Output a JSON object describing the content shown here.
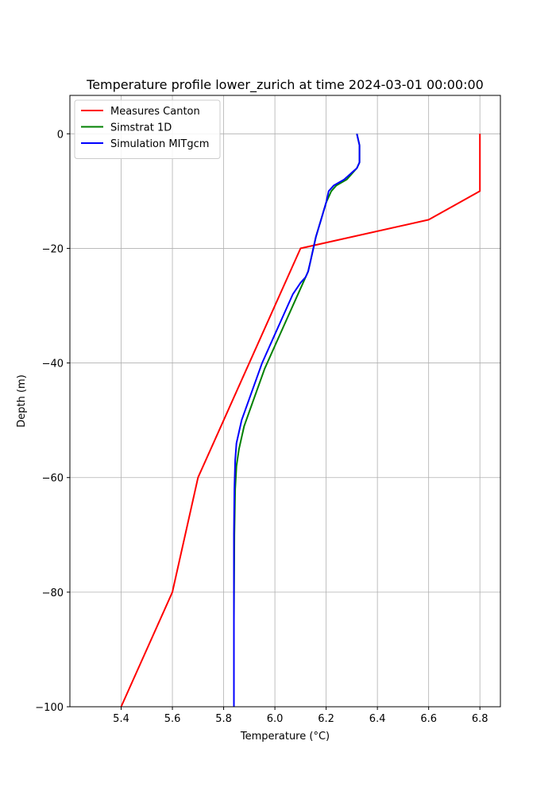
{
  "chart_data": {
    "type": "line",
    "title": "Temperature profile lower_zurich at time 2024-03-01 00:00:00",
    "xlabel": "Temperature (°C)",
    "ylabel": "Depth (m)",
    "xlim": [
      5.2,
      6.88
    ],
    "ylim": [
      -100,
      6.7
    ],
    "x_ticks": [
      5.4,
      5.6,
      5.8,
      6.0,
      6.2,
      6.4,
      6.6,
      6.8
    ],
    "y_ticks": [
      0,
      -20,
      -40,
      -60,
      -80,
      -100
    ],
    "grid": true,
    "legend_position": "top-left",
    "series": [
      {
        "name": "Measures Canton",
        "color": "#ff0000",
        "x": [
          6.8,
          6.8,
          6.6,
          6.1,
          5.7,
          5.6,
          5.4
        ],
        "y": [
          0,
          -10,
          -15,
          -20,
          -60,
          -80,
          -100
        ]
      },
      {
        "name": "Simstrat 1D",
        "color": "#008000",
        "x": [
          6.32,
          6.33,
          6.33,
          6.32,
          6.28,
          6.24,
          6.22,
          6.2,
          6.18,
          6.16,
          6.15,
          6.14,
          6.13,
          6.12,
          6.11,
          6.08,
          6.04,
          6.0,
          5.96,
          5.92,
          5.88,
          5.86,
          5.85,
          5.845,
          5.842,
          5.84,
          5.84
        ],
        "y": [
          0,
          -2,
          -5,
          -6,
          -8,
          -9,
          -10,
          -12,
          -15,
          -18,
          -20,
          -22,
          -24,
          -25,
          -26,
          -29,
          -33,
          -37,
          -41,
          -46,
          -51,
          -55,
          -58,
          -62,
          -70,
          -85,
          -100
        ]
      },
      {
        "name": "Simulation MITgcm",
        "color": "#0000ff",
        "x": [
          6.32,
          6.33,
          6.33,
          6.32,
          6.27,
          6.23,
          6.21,
          6.2,
          6.18,
          6.16,
          6.15,
          6.14,
          6.13,
          6.12,
          6.1,
          6.07,
          6.03,
          5.99,
          5.95,
          5.91,
          5.87,
          5.85,
          5.845,
          5.842,
          5.84,
          5.84,
          5.84
        ],
        "y": [
          0,
          -2,
          -5,
          -6,
          -8,
          -9,
          -10,
          -12,
          -15,
          -18,
          -20,
          -22,
          -24,
          -25,
          -26,
          -28,
          -32,
          -36,
          -40,
          -45,
          -50,
          -54,
          -57,
          -62,
          -70,
          -85,
          -100
        ]
      }
    ]
  }
}
